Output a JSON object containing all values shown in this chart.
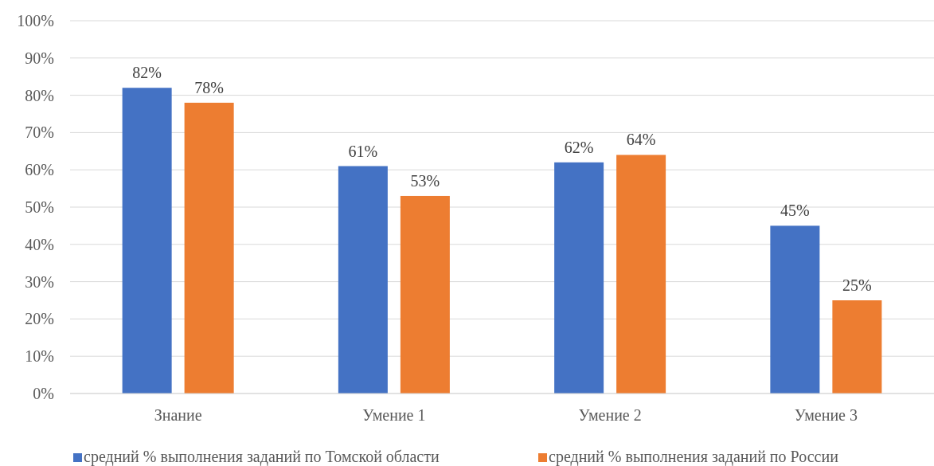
{
  "chart_data": {
    "type": "bar",
    "categories": [
      "Знание",
      "Умение 1",
      "Умение 2",
      "Умение 3"
    ],
    "series": [
      {
        "name": "средний % выполнения заданий по Томской области",
        "color": "#4472c4",
        "values": [
          82,
          61,
          62,
          45
        ],
        "value_labels": [
          "82%",
          "61%",
          "62%",
          "45%"
        ]
      },
      {
        "name": "средний % выполнения заданий по России",
        "color": "#ed7d31",
        "values": [
          78,
          53,
          64,
          25
        ],
        "value_labels": [
          "78%",
          "53%",
          "64%",
          "25%"
        ]
      }
    ],
    "ylim": [
      0,
      100
    ],
    "yticks": [
      {
        "value": 0,
        "label": "0%"
      },
      {
        "value": 10,
        "label": "10%"
      },
      {
        "value": 20,
        "label": "20%"
      },
      {
        "value": 30,
        "label": "30%"
      },
      {
        "value": 40,
        "label": "40%"
      },
      {
        "value": 50,
        "label": "50%"
      },
      {
        "value": 60,
        "label": "60%"
      },
      {
        "value": 70,
        "label": "70%"
      },
      {
        "value": 80,
        "label": "80%"
      },
      {
        "value": 90,
        "label": "90%"
      },
      {
        "value": 100,
        "label": "100%"
      }
    ],
    "grid": "y",
    "legend": "bottom"
  }
}
